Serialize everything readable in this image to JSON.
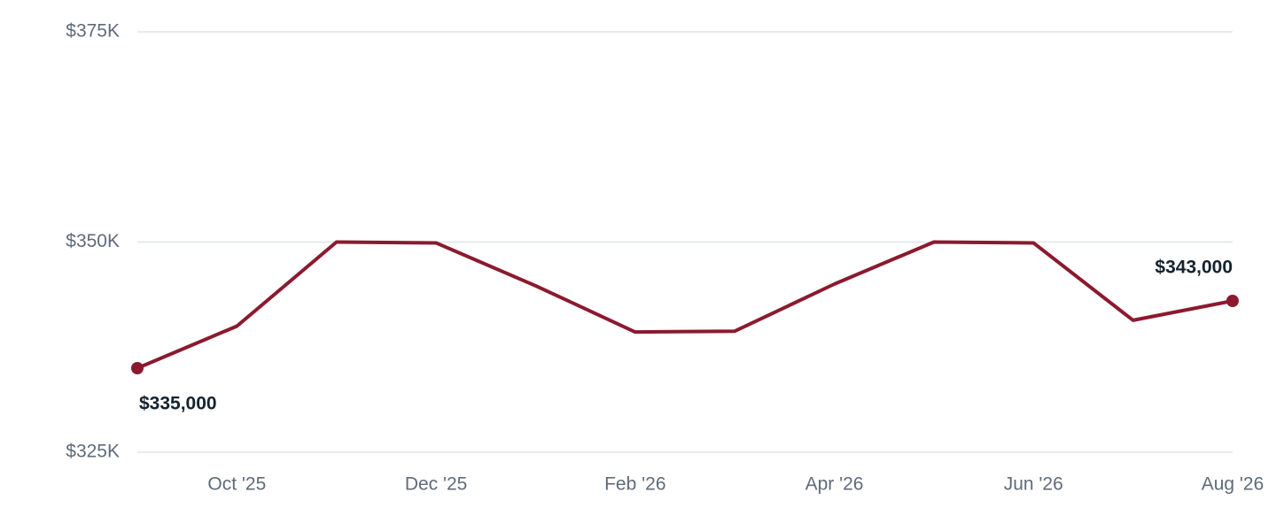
{
  "chart_data": {
    "type": "line",
    "categories": [
      null,
      "Oct '25",
      null,
      "Dec '25",
      null,
      "Feb '26",
      null,
      "Apr '26",
      null,
      "Jun '26",
      null,
      "Aug '26"
    ],
    "series": [
      {
        "color": "#8b1a2e",
        "values": [
          335000,
          340000,
          350000,
          349900,
          344800,
          339300,
          339400,
          345000,
          350000,
          349900,
          340700,
          343000
        ],
        "value_labels": [
          "$335,000",
          null,
          null,
          null,
          null,
          null,
          null,
          null,
          null,
          null,
          null,
          "$343,000"
        ]
      }
    ],
    "ylim": [
      325000,
      375000
    ],
    "yticks": [
      {
        "value": 325000,
        "label": "$325K"
      },
      {
        "value": 350000,
        "label": "$350K"
      },
      {
        "value": 375000,
        "label": "$375K"
      }
    ],
    "grid": true
  }
}
